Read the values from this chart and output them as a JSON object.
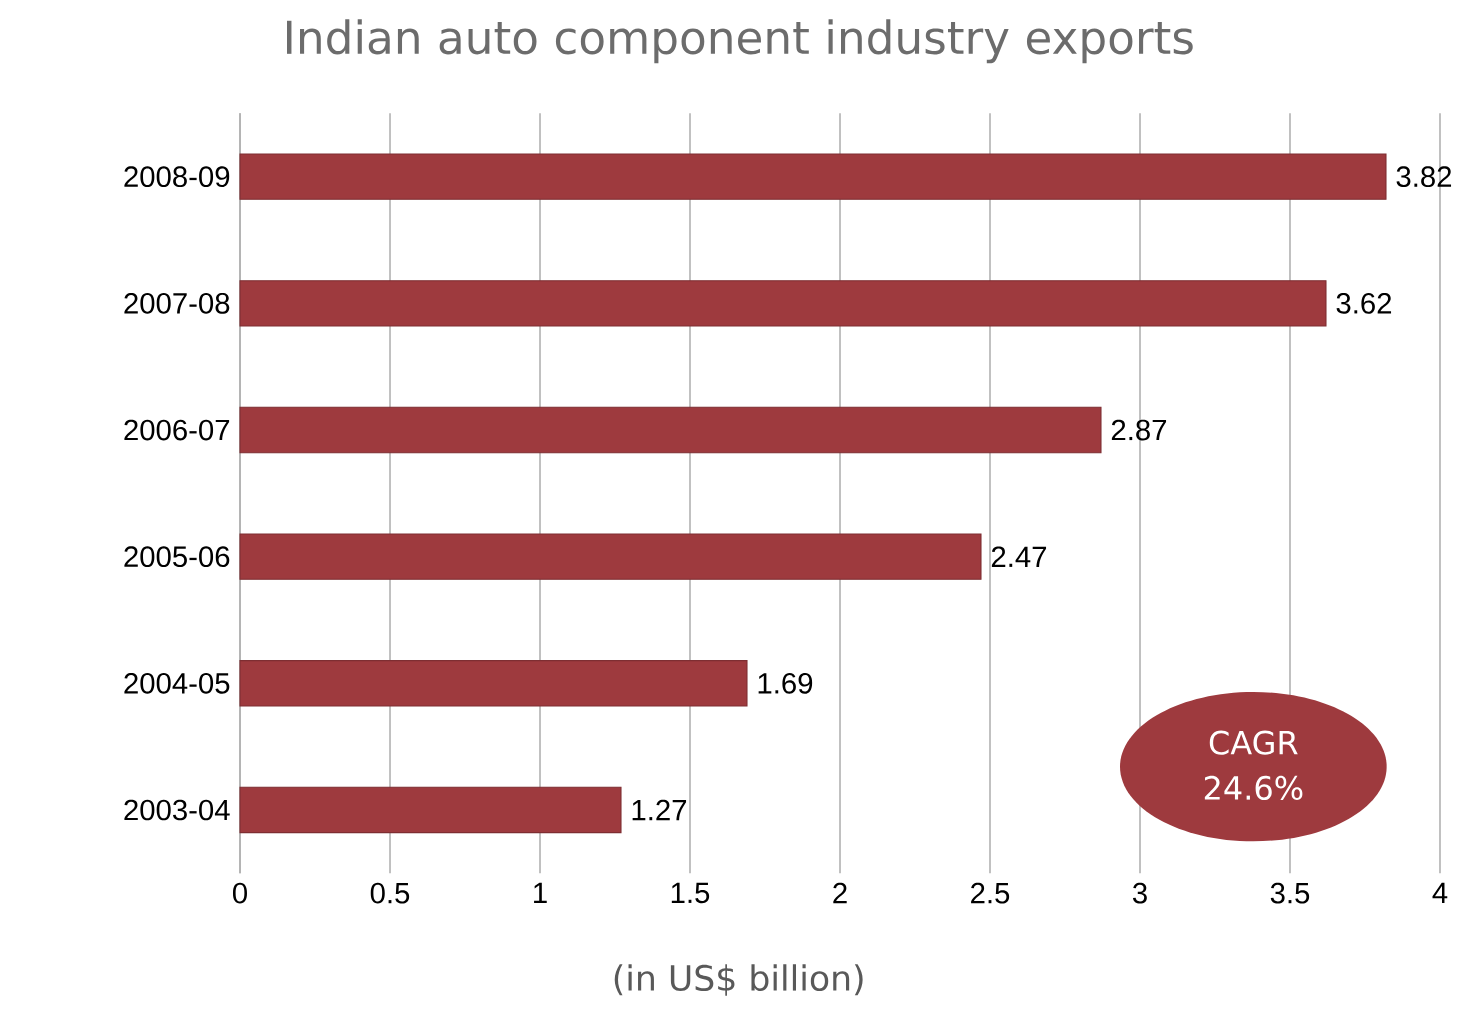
{
  "chart_data": {
    "type": "bar",
    "orientation": "horizontal",
    "title": "Indian auto component industry exports",
    "xlabel": "(in US$ billion)",
    "categories": [
      "2008-09",
      "2007-08",
      "2006-07",
      "2005-06",
      "2004-05",
      "2003-04"
    ],
    "values": [
      3.82,
      3.62,
      2.87,
      2.47,
      1.69,
      1.27
    ],
    "color": "#9e3a3e",
    "xlim": [
      0,
      4
    ],
    "xticks": [
      0,
      0.5,
      1,
      1.5,
      2,
      2.5,
      3,
      3.5,
      4
    ],
    "grid": "x",
    "data_labels": true,
    "annotations": [
      "CAGR",
      "24.6%"
    ]
  }
}
